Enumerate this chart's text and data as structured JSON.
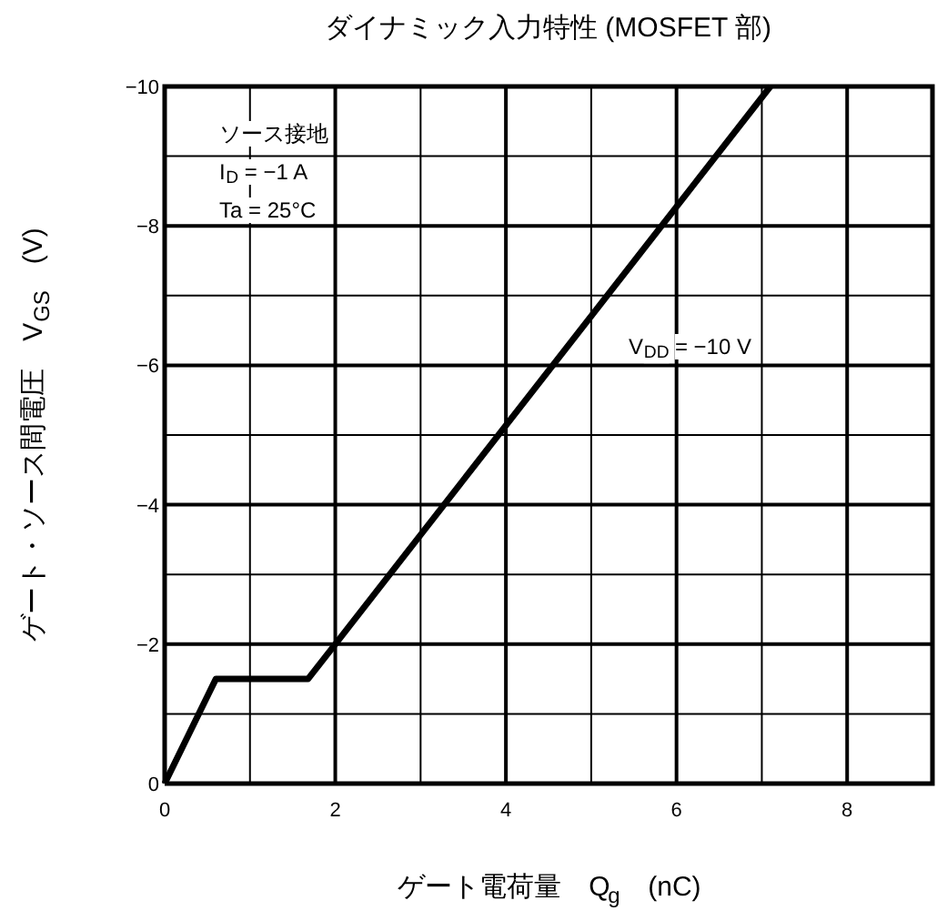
{
  "chart_data": {
    "type": "line",
    "title": "ダイナミック入力特性 (MOSFET 部)",
    "xlabel": "ゲート電荷量　Q$_{g}$　(nC)",
    "ylabel": "ゲート・ソース間電圧　V$_{GS}$　(V)",
    "x": [
      0,
      0.6,
      1.68,
      2,
      7.1
    ],
    "series": [
      {
        "color": "#000000",
        "values": [
          0,
          -1.5,
          -1.5,
          -2,
          -10
        ]
      }
    ],
    "xlim": [
      0,
      9
    ],
    "xticks": [
      0,
      {
        "value": 1,
        "label": null
      },
      2,
      {
        "value": 3,
        "label": null
      },
      4,
      {
        "value": 5,
        "label": null
      },
      6,
      {
        "value": 7,
        "label": null
      },
      8
    ],
    "ylim": [
      0,
      -10
    ],
    "yticks": [
      {
        "value": 0,
        "label": "0"
      },
      {
        "value": -1,
        "label": null
      },
      {
        "value": -2,
        "label": "−2"
      },
      {
        "value": -3,
        "label": null
      },
      {
        "value": -4,
        "label": "−4"
      },
      {
        "value": -5,
        "label": null
      },
      {
        "value": -6,
        "label": "−6"
      },
      {
        "value": -7,
        "label": null
      },
      {
        "value": -8,
        "label": "−8"
      },
      {
        "value": -9,
        "label": null
      },
      {
        "value": -10,
        "label": "−10"
      }
    ],
    "grid": true,
    "line_style": "solid",
    "marker": "none",
    "annotations": [
      "ソース接地",
      "I$_{D}$ = −1 A",
      "Ta = 25°C",
      "V$_{DD}$ = −10 V"
    ]
  }
}
